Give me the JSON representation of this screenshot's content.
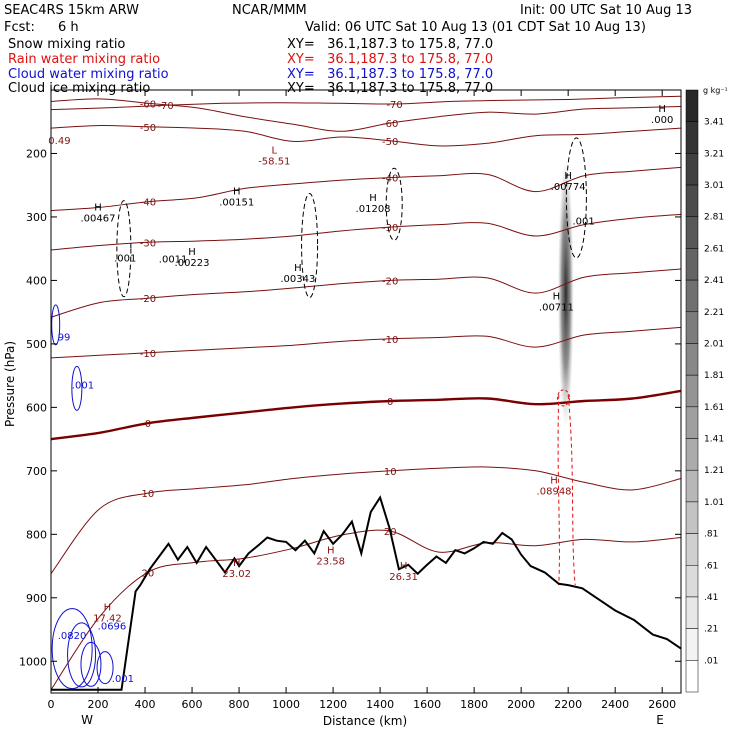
{
  "header": {
    "model": "SEAC4RS 15km ARW",
    "org": "NCAR/MMM",
    "init": "Init: 00 UTC Sat 10 Aug 13",
    "fcst_label": "Fcst:",
    "fcst_value": "6 h",
    "valid": "Valid: 06 UTC Sat 10 Aug 13 (01 CDT Sat 10 Aug 13)"
  },
  "fields": [
    {
      "name": "Snow mixing ratio",
      "xy": "XY=   36.1,187.3 to 175.8, 77.0",
      "color": "#000000"
    },
    {
      "name": "Rain water mixing ratio",
      "xy": "XY=   36.1,187.3 to 175.8, 77.0",
      "color": "#e01010"
    },
    {
      "name": "Cloud water mixing ratio",
      "xy": "XY=   36.1,187.3 to 175.8, 77.0",
      "color": "#1010d0"
    },
    {
      "name": "Cloud ice mixing ratio",
      "xy": "XY=   36.1,187.3 to 175.8, 77.0",
      "color": "#000000"
    }
  ],
  "colors": {
    "temperature": "#7a1010",
    "zero_isotherm": "#7a0000",
    "rain": "#e01010",
    "cloud": "#1010d0",
    "terrain": "#000000"
  },
  "chart_data": {
    "type": "line",
    "xlabel": "Distance (km)",
    "ylabel": "Pressure (hPa)",
    "xlim": [
      0,
      2680
    ],
    "ylim": [
      1050,
      100
    ],
    "x_ticks": [
      0,
      200,
      400,
      600,
      800,
      1000,
      1200,
      1400,
      1600,
      1800,
      2000,
      2200,
      2400,
      2600
    ],
    "y_ticks": [
      200,
      300,
      400,
      500,
      600,
      700,
      800,
      900,
      1000
    ],
    "x_end_labels": {
      "left": "W",
      "right": "E"
    },
    "colorbar": {
      "unit": "g kg⁻¹",
      "labels": [
        "3.41",
        "3.21",
        "3.01",
        "2.81",
        "2.61",
        "2.41",
        "2.21",
        "2.01",
        "1.81",
        "1.61",
        "1.41",
        "1.21",
        "1.01",
        ".81",
        ".61",
        ".41",
        ".21",
        ".01"
      ]
    },
    "terrain": {
      "x": [
        0,
        300,
        360,
        380,
        420,
        460,
        500,
        540,
        580,
        620,
        660,
        700,
        740,
        780,
        800,
        840,
        880,
        920,
        960,
        1000,
        1040,
        1080,
        1120,
        1160,
        1200,
        1240,
        1280,
        1320,
        1360,
        1400,
        1440,
        1480,
        1520,
        1560,
        1600,
        1640,
        1680,
        1720,
        1760,
        1800,
        1840,
        1880,
        1920,
        1960,
        2000,
        2040,
        2100,
        2160,
        2200,
        2260,
        2320,
        2400,
        2480,
        2560,
        2620,
        2680
      ],
      "y": [
        1045,
        1045,
        890,
        880,
        855,
        835,
        815,
        840,
        820,
        845,
        820,
        840,
        860,
        838,
        850,
        830,
        818,
        805,
        810,
        812,
        825,
        810,
        830,
        795,
        815,
        800,
        780,
        830,
        765,
        742,
        790,
        855,
        848,
        862,
        848,
        835,
        845,
        825,
        830,
        822,
        812,
        815,
        798,
        808,
        832,
        850,
        860,
        878,
        880,
        885,
        900,
        920,
        935,
        958,
        965,
        980
      ]
    },
    "temperature_contours": [
      {
        "label": "-70",
        "p": [
          131,
          128,
          124,
          121,
          120,
          121,
          122,
          118,
          116,
          115,
          112,
          110
        ]
      },
      {
        "label": "-60",
        "p": [
          118,
          114,
          121,
          128,
          142,
          154,
          165,
          152,
          142,
          135,
          138,
          130,
          128,
          126
        ]
      },
      {
        "label": "-50",
        "p": [
          160,
          156,
          158,
          160,
          165,
          181,
          174,
          180,
          188,
          184,
          172,
          170,
          165,
          160
        ]
      },
      {
        "label": "-40",
        "p": [
          290,
          285,
          276,
          270,
          255,
          248,
          242,
          238,
          235,
          233,
          260,
          235,
          228,
          222
        ]
      },
      {
        "label": "-30",
        "p": [
          352,
          345,
          340,
          338,
          335,
          330,
          322,
          316,
          312,
          310,
          330,
          312,
          302,
          296
        ]
      },
      {
        "label": "-20",
        "p": [
          458,
          435,
          428,
          422,
          418,
          412,
          405,
          400,
          398,
          396,
          420,
          395,
          388,
          382
        ]
      },
      {
        "label": "-10",
        "p": [
          522,
          518,
          514,
          510,
          506,
          502,
          496,
          492,
          490,
          488,
          505,
          486,
          480,
          474
        ]
      },
      {
        "label": "0",
        "p": [
          650,
          640,
          625,
          616,
          608,
          600,
          594,
          590,
          588,
          586,
          595,
          590,
          586,
          574
        ]
      },
      {
        "label": "10",
        "p": [
          862,
          760,
          735,
          728,
          722,
          712,
          705,
          700,
          696,
          694,
          700,
          718,
          730,
          712
        ]
      },
      {
        "label": "20",
        "p": [
          1050,
          930,
          885,
          860,
          850,
          845,
          840,
          835,
          828,
          822,
          818,
          808,
          812,
          805
        ]
      }
    ],
    "annotations": [
      {
        "text": "H",
        "value": ".00467",
        "x": 200,
        "p": 290
      },
      {
        "text": "H",
        "value": ".00151",
        "x": 790,
        "p": 265
      },
      {
        "text": "H",
        "value": ".01208",
        "x": 1370,
        "p": 275
      },
      {
        "text": "H",
        "value": ".00223",
        "x": 600,
        "p": 360
      },
      {
        "text": "H",
        "value": ".00343",
        "x": 1050,
        "p": 385
      },
      {
        "text": "H",
        "value": ".00774",
        "x": 2200,
        "p": 240
      },
      {
        "text": "H",
        "value": ".00711",
        "x": 2150,
        "p": 430
      },
      {
        "text": "H",
        "value": ".000",
        "x": 2600,
        "p": 135
      },
      {
        "text": "H",
        "value": ".08948",
        "x": 2140,
        "p": 720
      },
      {
        "text": "H",
        "value": "23.02",
        "x": 790,
        "p": 850
      },
      {
        "text": "H",
        "value": "23.58",
        "x": 1190,
        "p": 830
      },
      {
        "text": "H",
        "value": "26.31",
        "x": 1500,
        "p": 855
      },
      {
        "text": "H",
        "value": "17.42",
        "x": 240,
        "p": 920
      },
      {
        "text": "L",
        "value": "-58.51",
        "x": 950,
        "p": 200
      }
    ],
    "small_labels": [
      ".001",
      ".0011",
      ".001",
      "0.49",
      "99",
      ".001",
      ".0696",
      ".0820",
      ".001"
    ]
  }
}
